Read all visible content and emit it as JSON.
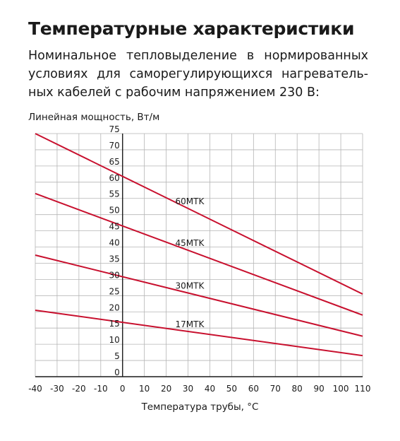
{
  "header": {
    "title": "Температурные характеристики",
    "subtitle": "Номинальное тепловыделение в нормированных условиях для саморегулирующихся нагреватель-ных кабелей с рабочим напряжением 230 В:"
  },
  "chart_data": {
    "type": "line",
    "title": "",
    "ylabel": "Линейная мощность, Вт/м",
    "xlabel": "Температура трубы, °С",
    "xlim": [
      -40,
      110
    ],
    "ylim": [
      0,
      75
    ],
    "x_ticks": [
      -40,
      -30,
      -20,
      -10,
      0,
      10,
      20,
      30,
      40,
      50,
      60,
      70,
      80,
      90,
      100,
      110
    ],
    "y_ticks": [
      0,
      5,
      10,
      15,
      20,
      25,
      30,
      35,
      40,
      45,
      50,
      55,
      60,
      65,
      70,
      75
    ],
    "grid": true,
    "line_color": "#c8102e",
    "series": [
      {
        "name": "60MTK",
        "x": [
          -40,
          110
        ],
        "y": [
          75,
          25.5
        ]
      },
      {
        "name": "45MTK",
        "x": [
          -40,
          110
        ],
        "y": [
          56.5,
          19
        ]
      },
      {
        "name": "30MTK",
        "x": [
          -40,
          110
        ],
        "y": [
          37.5,
          12.5
        ]
      },
      {
        "name": "17MTK",
        "x": [
          -40,
          110
        ],
        "y": [
          20.5,
          6.5
        ]
      }
    ]
  }
}
